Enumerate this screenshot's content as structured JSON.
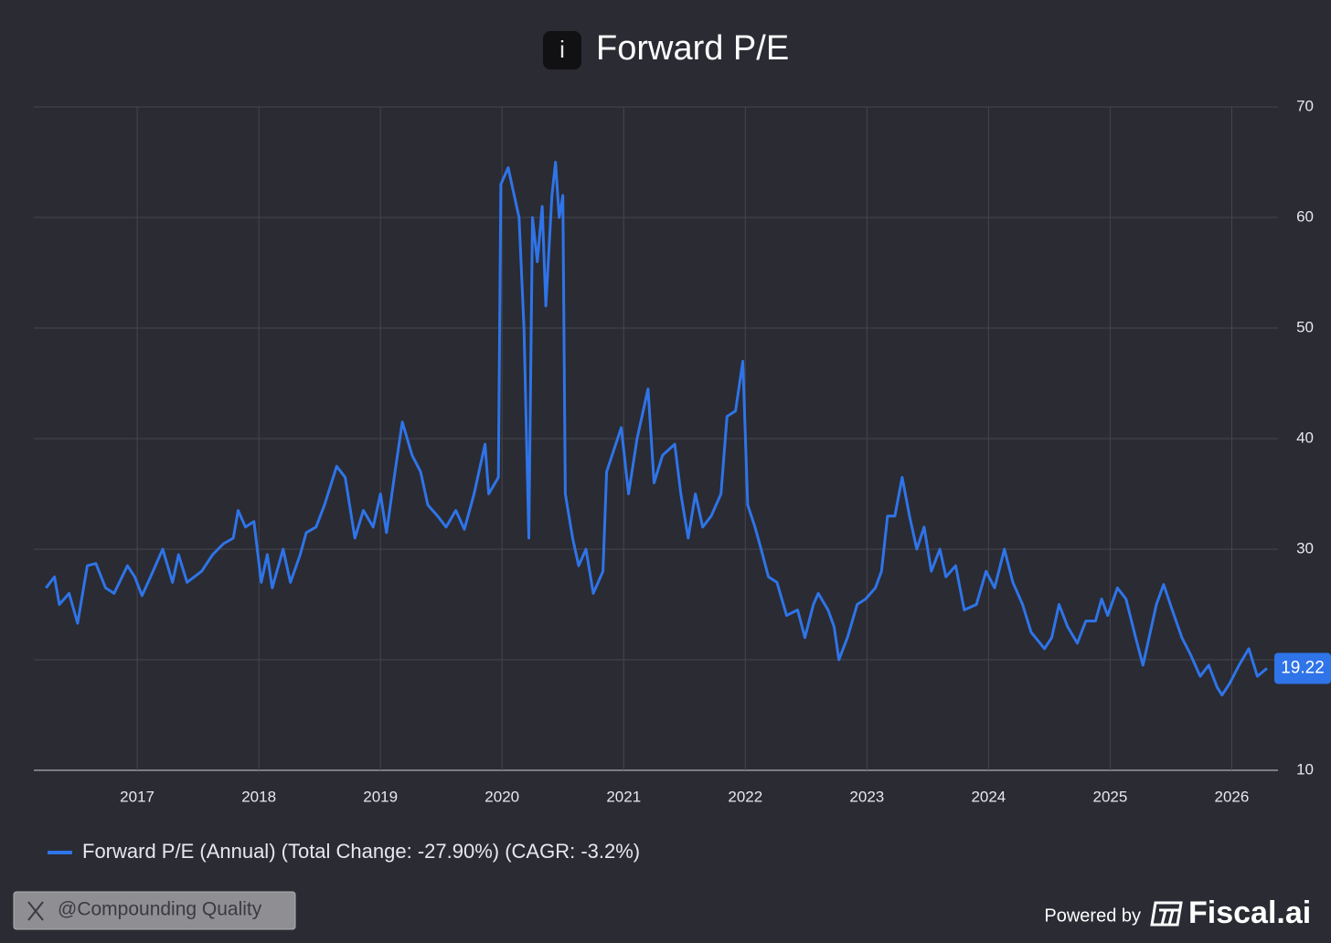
{
  "chart_data": {
    "type": "line",
    "title_icon": "i",
    "title": "Forward P/E",
    "x": [
      2016.25,
      2016.32,
      2016.36,
      2016.44,
      2016.51,
      2016.59,
      2016.66,
      2016.74,
      2016.81,
      2016.92,
      2016.98,
      2017.04,
      2017.11,
      2017.21,
      2017.29,
      2017.34,
      2017.41,
      2017.53,
      2017.62,
      2017.71,
      2017.79,
      2017.83,
      2017.89,
      2017.96,
      2018.02,
      2018.07,
      2018.11,
      2018.2,
      2018.26,
      2018.34,
      2018.39,
      2018.47,
      2018.54,
      2018.64,
      2018.71,
      2018.79,
      2018.86,
      2018.94,
      2019.0,
      2019.05,
      2019.12,
      2019.18,
      2019.26,
      2019.33,
      2019.39,
      2019.47,
      2019.54,
      2019.62,
      2019.69,
      2019.77,
      2019.86,
      2019.89,
      2019.97,
      2019.99,
      2020.05,
      2020.1,
      2020.14,
      2020.18,
      2020.22,
      2020.25,
      2020.29,
      2020.33,
      2020.36,
      2020.41,
      2020.44,
      2020.47,
      2020.5,
      2020.52,
      2020.58,
      2020.63,
      2020.69,
      2020.75,
      2020.83,
      2020.86,
      2020.92,
      2020.98,
      2021.04,
      2021.11,
      2021.2,
      2021.25,
      2021.32,
      2021.42,
      2021.47,
      2021.53,
      2021.59,
      2021.65,
      2021.72,
      2021.8,
      2021.85,
      2021.92,
      2021.98,
      2022.02,
      2022.08,
      2022.13,
      2022.19,
      2022.26,
      2022.34,
      2022.43,
      2022.49,
      2022.56,
      2022.6,
      2022.68,
      2022.73,
      2022.77,
      2022.84,
      2022.92,
      2022.99,
      2023.07,
      2023.12,
      2023.17,
      2023.23,
      2023.29,
      2023.35,
      2023.41,
      2023.47,
      2023.53,
      2023.6,
      2023.65,
      2023.73,
      2023.8,
      2023.9,
      2023.98,
      2024.05,
      2024.13,
      2024.2,
      2024.28,
      2024.35,
      2024.46,
      2024.52,
      2024.58,
      2024.65,
      2024.73,
      2024.8,
      2024.88,
      2024.93,
      2024.98,
      2025.06,
      2025.13,
      2025.21,
      2025.27,
      2025.33,
      2025.38,
      2025.44,
      2025.51,
      2025.59,
      2025.66,
      2025.74,
      2025.81,
      2025.88,
      2025.92,
      2025.98,
      2026.06,
      2026.14,
      2026.21,
      2026.29
    ],
    "series": [
      {
        "name": "Forward P/E (Annual) (Total Change: -27.90%) (CAGR: -3.2%)",
        "color": "#2f74e8",
        "values": [
          26.5,
          27.5,
          25,
          26,
          23.3,
          28.5,
          28.7,
          26.5,
          26,
          28.5,
          27.5,
          25.8,
          27.5,
          30,
          27,
          29.5,
          27,
          28,
          29.5,
          30.5,
          31,
          33.5,
          32,
          32.5,
          27,
          29.5,
          26.5,
          30,
          27,
          29.5,
          31.5,
          32,
          34,
          37.5,
          36.5,
          31,
          33.5,
          32,
          35,
          31.5,
          37,
          41.5,
          38.5,
          37,
          34,
          33,
          32,
          33.5,
          31.8,
          35,
          39.5,
          35,
          36.5,
          63,
          64.5,
          62,
          60,
          50,
          31,
          60,
          56,
          61,
          52,
          62,
          65,
          60,
          62,
          35,
          31,
          28.5,
          30,
          26,
          28,
          37,
          39,
          41,
          35,
          40,
          44.5,
          36,
          38.5,
          39.5,
          35,
          31,
          35,
          32,
          33,
          35,
          42,
          42.5,
          47,
          34,
          32,
          30,
          27.5,
          27,
          24,
          24.5,
          22,
          25,
          26,
          24.5,
          23,
          20,
          22,
          25,
          25.5,
          26.5,
          28,
          33,
          33,
          36.5,
          33,
          30,
          32,
          28,
          30,
          27.5,
          28.5,
          24.5,
          25,
          28,
          26.5,
          30,
          27,
          25,
          22.5,
          21,
          22,
          25,
          23,
          21.5,
          23.5,
          23.5,
          25.5,
          24,
          26.5,
          25.5,
          22,
          19.5,
          22.5,
          25,
          26.8,
          24.5,
          22,
          20.5,
          18.5,
          19.5,
          17.5,
          16.8,
          17.8,
          19.5,
          21,
          18.5,
          19.22
        ]
      }
    ],
    "xlim": [
      2016.15,
      2026.38
    ],
    "xticks": [
      2017,
      2018,
      2019,
      2020,
      2021,
      2022,
      2023,
      2024,
      2025,
      2026
    ],
    "ylim": [
      10,
      70
    ],
    "yticks": [
      10,
      20,
      30,
      40,
      50,
      60,
      70
    ],
    "grid": true,
    "legend": "bottom-left",
    "watermark": "@Compounding Quality",
    "powered_by": "Powered by",
    "brand": "Fiscal.ai"
  }
}
